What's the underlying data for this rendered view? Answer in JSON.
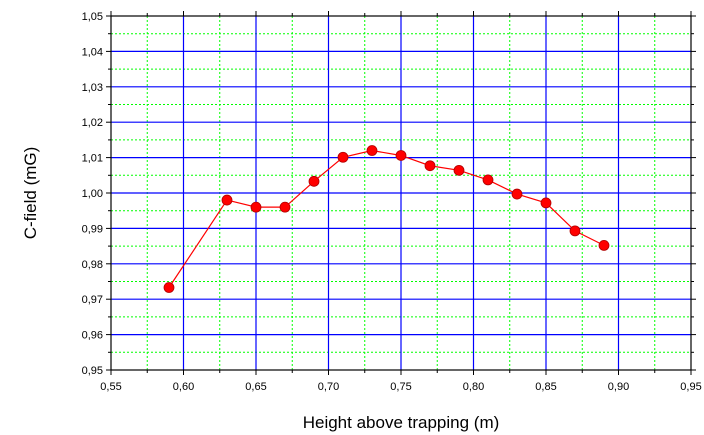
{
  "chart_data": {
    "type": "line",
    "xlabel": "Height above trapping (m)",
    "ylabel": "C-field (mG)",
    "xlim": [
      0.55,
      0.95
    ],
    "ylim": [
      0.95,
      1.05
    ],
    "x_ticks": [
      "0,55",
      "0,60",
      "0,65",
      "0,70",
      "0,75",
      "0,80",
      "0,85",
      "0,90",
      "0,95"
    ],
    "y_ticks": [
      "0,95",
      "0,96",
      "0,97",
      "0,98",
      "0,99",
      "1,00",
      "1,01",
      "1,02",
      "1,03",
      "1,04",
      "1,05"
    ],
    "grid": true,
    "major_grid_color": "#0000ff",
    "minor_grid_color": "#00ff00",
    "series": [
      {
        "color": "#ff0000",
        "marker": "circle",
        "x": [
          0.59,
          0.63,
          0.65,
          0.67,
          0.69,
          0.71,
          0.73,
          0.75,
          0.77,
          0.79,
          0.81,
          0.83,
          0.85,
          0.87,
          0.89
        ],
        "y": [
          0.9733,
          0.998,
          0.996,
          0.996,
          1.0033,
          1.0101,
          1.012,
          1.0106,
          1.0077,
          1.0064,
          1.0037,
          0.9997,
          0.9972,
          0.9893,
          0.9852
        ]
      }
    ]
  }
}
